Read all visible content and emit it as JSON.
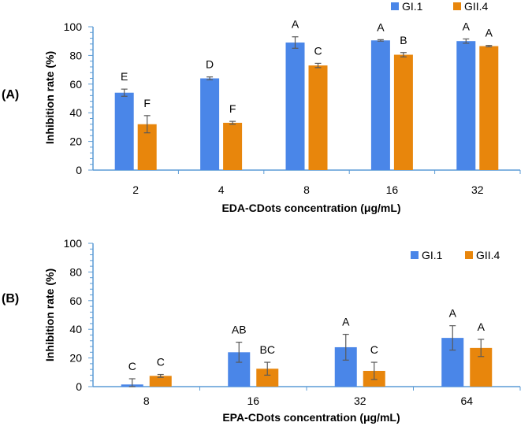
{
  "chart_data": [
    {
      "type": "bar",
      "panel_label": "(A)",
      "categories": [
        "2",
        "4",
        "8",
        "16",
        "32"
      ],
      "xlabel": "EDA-CDots concentration (μg/mL)",
      "ylabel": "Inhibition rate (%)",
      "ylim": [
        0,
        100
      ],
      "yticks": [
        "0",
        "20",
        "40",
        "60",
        "80",
        "100"
      ],
      "legend_position": "top-right",
      "series": [
        {
          "name": "GI.1",
          "color": "#4a86e8",
          "values": [
            54,
            64,
            89,
            90.5,
            90
          ],
          "errors": [
            2.5,
            1,
            4,
            0.5,
            1.5
          ],
          "letters": [
            "E",
            "D",
            "A",
            "A",
            "A"
          ]
        },
        {
          "name": "GII.4",
          "color": "#e8860c",
          "values": [
            32,
            33,
            73,
            80.5,
            86.5
          ],
          "errors": [
            6,
            1,
            1.5,
            1.5,
            0.5
          ],
          "letters": [
            "F",
            "F",
            "C",
            "B",
            "A"
          ]
        }
      ]
    },
    {
      "type": "bar",
      "panel_label": "(B)",
      "categories": [
        "8",
        "16",
        "32",
        "64"
      ],
      "xlabel": "EPA-CDots concentration (μg/mL)",
      "ylabel": "Inhibition rate (%)",
      "ylim": [
        0,
        100
      ],
      "yticks": [
        "0",
        "20",
        "40",
        "60",
        "80",
        "100"
      ],
      "legend_position": "upper-right",
      "series": [
        {
          "name": "GI.1",
          "color": "#4a86e8",
          "values": [
            1.5,
            24,
            27.5,
            34
          ],
          "errors": [
            4,
            7,
            9,
            8.5
          ],
          "letters": [
            "C",
            "AB",
            "A",
            "A"
          ]
        },
        {
          "name": "GII.4",
          "color": "#e8860c",
          "values": [
            7.5,
            12.5,
            11,
            27
          ],
          "errors": [
            1,
            4.5,
            6,
            6
          ],
          "letters": [
            "C",
            "BC",
            "C",
            "A"
          ]
        }
      ]
    }
  ]
}
